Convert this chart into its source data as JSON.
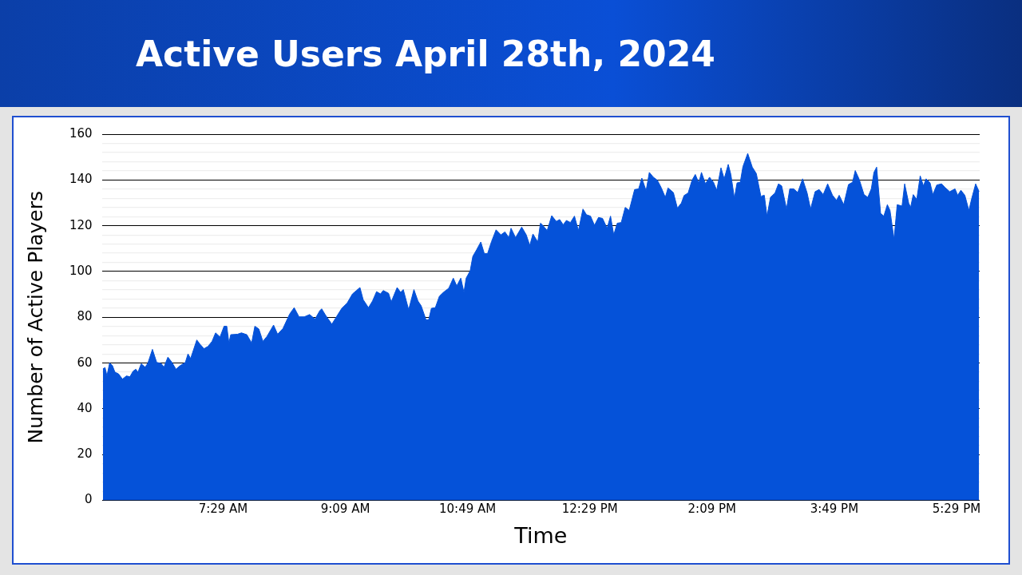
{
  "chart_data": {
    "type": "area",
    "title": "Active Users April 28th, 2024",
    "xlabel": "Time",
    "ylabel": "Number of Active Players",
    "color": "#0552d9",
    "grid": "y",
    "legend": false,
    "xlim": [
      5.83,
      17.8
    ],
    "xticks": [
      {
        "value": 7.4833,
        "label": "7:29 AM"
      },
      {
        "value": 9.15,
        "label": "9:09 AM"
      },
      {
        "value": 10.8167,
        "label": "10:49 AM"
      },
      {
        "value": 12.4833,
        "label": "12:29 PM"
      },
      {
        "value": 14.15,
        "label": "2:09 PM"
      },
      {
        "value": 15.8167,
        "label": "3:49 PM"
      },
      {
        "value": 17.4833,
        "label": "5:29 PM"
      }
    ],
    "ylim": [
      0,
      160
    ],
    "yticks": [
      0,
      {
        "value": 4,
        "label": null
      },
      {
        "value": 8,
        "label": null
      },
      {
        "value": 12,
        "label": null
      },
      {
        "value": 16,
        "label": null
      },
      20,
      {
        "value": 24,
        "label": null
      },
      {
        "value": 28,
        "label": null
      },
      {
        "value": 32,
        "label": null
      },
      {
        "value": 36,
        "label": null
      },
      40,
      {
        "value": 44,
        "label": null
      },
      {
        "value": 48,
        "label": null
      },
      {
        "value": 52,
        "label": null
      },
      {
        "value": 56,
        "label": null
      },
      60,
      {
        "value": 64,
        "label": null
      },
      {
        "value": 68,
        "label": null
      },
      {
        "value": 72,
        "label": null
      },
      {
        "value": 76,
        "label": null
      },
      80,
      {
        "value": 84,
        "label": null
      },
      {
        "value": 88,
        "label": null
      },
      {
        "value": 92,
        "label": null
      },
      {
        "value": 96,
        "label": null
      },
      100,
      {
        "value": 104,
        "label": null
      },
      {
        "value": 108,
        "label": null
      },
      {
        "value": 112,
        "label": null
      },
      {
        "value": 116,
        "label": null
      },
      120,
      {
        "value": 124,
        "label": null
      },
      {
        "value": 128,
        "label": null
      },
      {
        "value": 132,
        "label": null
      },
      {
        "value": 136,
        "label": null
      },
      140,
      {
        "value": 144,
        "label": null
      },
      {
        "value": 148,
        "label": null
      },
      {
        "value": 152,
        "label": null
      },
      {
        "value": 156,
        "label": null
      },
      160
    ],
    "x": [
      5.844,
      5.873,
      5.899,
      5.935,
      5.972,
      6.008,
      6.056,
      6.11,
      6.165,
      6.212,
      6.256,
      6.293,
      6.322,
      6.366,
      6.42,
      6.457,
      6.519,
      6.577,
      6.639,
      6.676,
      6.73,
      6.785,
      6.84,
      6.894,
      6.968,
      7.004,
      7.04,
      7.124,
      7.168,
      7.223,
      7.277,
      7.332,
      7.38,
      7.441,
      7.496,
      7.533,
      7.562,
      7.587,
      7.679,
      7.733,
      7.806,
      7.872,
      7.916,
      7.97,
      8.025,
      8.08,
      8.171,
      8.226,
      8.299,
      8.39,
      8.452,
      8.518,
      8.59,
      8.663,
      8.736,
      8.802,
      8.827,
      8.882,
      8.966,
      9.028,
      9.101,
      9.174,
      9.247,
      9.301,
      9.349,
      9.393,
      9.465,
      9.52,
      9.575,
      9.63,
      9.666,
      9.739,
      9.776,
      9.812,
      9.856,
      9.903,
      9.94,
      10.013,
      10.085,
      10.14,
      10.184,
      10.25,
      10.286,
      10.323,
      10.377,
      10.432,
      10.487,
      10.56,
      10.622,
      10.669,
      10.724,
      10.767,
      10.797,
      10.852,
      10.888,
      10.943,
      10.997,
      11.045,
      11.089,
      11.143,
      11.205,
      11.271,
      11.326,
      11.38,
      11.409,
      11.471,
      11.555,
      11.617,
      11.665,
      11.708,
      11.774,
      11.81,
      11.836,
      11.902,
      11.964,
      12.026,
      12.073,
      12.121,
      12.164,
      12.219,
      12.274,
      12.328,
      12.39,
      12.438,
      12.493,
      12.547,
      12.602,
      12.657,
      12.719,
      12.766,
      12.81,
      12.857,
      12.912,
      12.966,
      13.021,
      13.094,
      13.149,
      13.193,
      13.251,
      13.295,
      13.35,
      13.404,
      13.459,
      13.513,
      13.55,
      13.623,
      13.678,
      13.732,
      13.769,
      13.824,
      13.878,
      13.922,
      13.97,
      14.006,
      14.061,
      14.116,
      14.17,
      14.214,
      14.272,
      14.316,
      14.371,
      14.407,
      14.455,
      14.491,
      14.535,
      14.571,
      14.637,
      14.699,
      14.754,
      14.819,
      14.827,
      14.863,
      14.9,
      14.947,
      15.009,
      15.056,
      15.1,
      15.166,
      15.21,
      15.264,
      15.319,
      15.385,
      15.447,
      15.494,
      15.556,
      15.611,
      15.666,
      15.727,
      15.793,
      15.848,
      15.884,
      15.946,
      16.011,
      16.066,
      16.103,
      16.157,
      16.223,
      16.274,
      16.322,
      16.358,
      16.395,
      16.449,
      16.493,
      16.541,
      16.577,
      16.632,
      16.675,
      16.741,
      16.777,
      16.832,
      16.858,
      16.894,
      16.942,
      16.989,
      17.033,
      17.069,
      17.124,
      17.161,
      17.215,
      17.281,
      17.325,
      17.391,
      17.464,
      17.5,
      17.544,
      17.598,
      17.653,
      17.69,
      17.745,
      17.792
    ],
    "values": [
      57.5,
      58,
      54.4,
      60,
      59,
      56,
      55.3,
      53,
      54.4,
      54,
      56.5,
      57.3,
      56,
      59.7,
      58.2,
      60,
      66,
      60.3,
      59.8,
      58.2,
      62.6,
      60.3,
      57.3,
      58.8,
      60.3,
      64,
      62,
      70.1,
      68.2,
      66.3,
      67.3,
      69.5,
      73.2,
      71.4,
      76.1,
      76.1,
      68.8,
      72.4,
      72.6,
      73.2,
      72.4,
      68.8,
      76.1,
      74.9,
      69.5,
      71.6,
      76.6,
      72.6,
      75.1,
      81.4,
      84.2,
      80.2,
      80.2,
      81.2,
      79.2,
      82.9,
      83.7,
      80.8,
      77,
      80.2,
      83.9,
      86.2,
      90.2,
      91.7,
      93,
      87.7,
      84.2,
      87.1,
      91.2,
      90.2,
      91.7,
      90.5,
      86.7,
      89.6,
      93,
      90.9,
      92.1,
      83.3,
      92.1,
      87.1,
      85,
      78.9,
      78.9,
      83.9,
      84.2,
      89.2,
      90.9,
      92.7,
      97.1,
      93.7,
      97.1,
      90.9,
      97.1,
      100.3,
      106.6,
      109.7,
      112.9,
      107.8,
      107.8,
      113.1,
      118.2,
      116,
      117.3,
      114.8,
      118.9,
      114.8,
      119.4,
      116,
      111.4,
      116.4,
      112.9,
      121.1,
      120.4,
      117.9,
      124.4,
      121.9,
      122.7,
      120.4,
      122.3,
      121.4,
      124.2,
      117.9,
      127.3,
      124.8,
      124.2,
      120.2,
      123.6,
      123.2,
      118.9,
      124.2,
      116,
      121.1,
      121.4,
      128,
      126.7,
      135.8,
      136.1,
      140.8,
      135.3,
      143.3,
      141.2,
      139.9,
      136.5,
      132.4,
      136.5,
      134.5,
      127.7,
      129.9,
      133.2,
      134.3,
      139.9,
      142.4,
      138.7,
      143.3,
      138.3,
      141.2,
      139,
      135.5,
      145.3,
      140.5,
      146.8,
      142.4,
      132,
      138.7,
      139,
      145.8,
      151.6,
      145.6,
      142.8,
      132.4,
      133,
      133.3,
      124.2,
      132.4,
      134.3,
      138.3,
      137.4,
      127.3,
      136.1,
      136.1,
      134.5,
      140.5,
      134.3,
      127.3,
      134.9,
      135.8,
      133.6,
      138.3,
      133.3,
      131.1,
      133.3,
      129.2,
      138,
      139,
      144.1,
      140.3,
      133.6,
      132.4,
      136.1,
      143.3,
      145.6,
      125.4,
      124.2,
      129.2,
      126.7,
      114.1,
      129.2,
      128.6,
      138.3,
      129.9,
      128,
      133.6,
      131.5,
      141.8,
      137.4,
      140.5,
      138.7,
      133.6,
      137.8,
      138.3,
      136.8,
      134.9,
      136.1,
      133.3,
      135.5,
      133.3,
      126.7,
      131.7,
      138.3,
      134.9
    ]
  }
}
